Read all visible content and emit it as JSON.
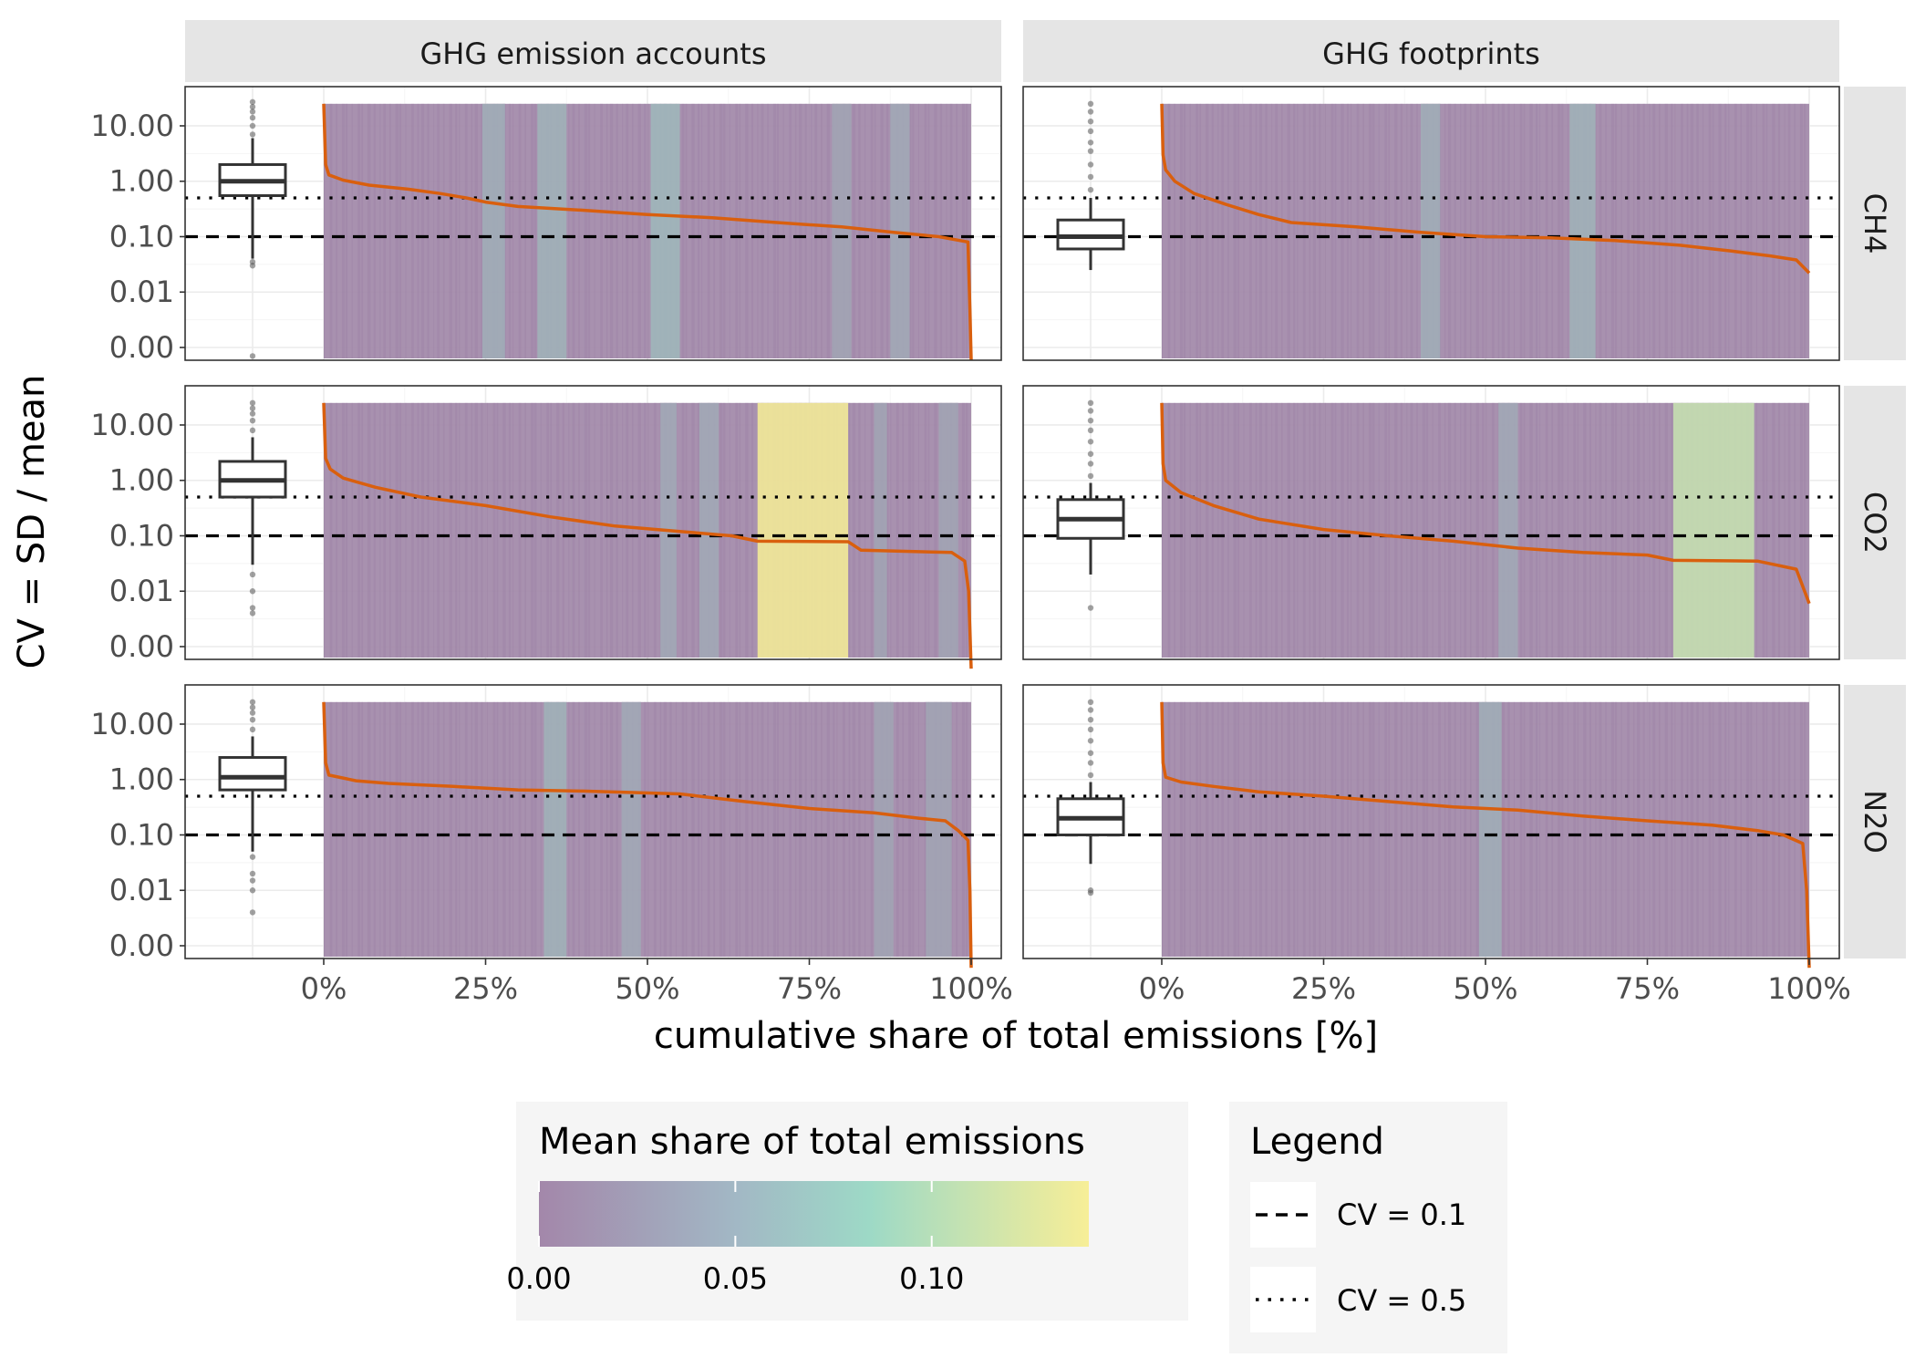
{
  "chart_data": {
    "type": "faceted-line",
    "ylabel": "CV = SD / mean",
    "xlabel": "cumulative share of total emissions [%]",
    "x_ticks": [
      "0%",
      "25%",
      "50%",
      "75%",
      "100%"
    ],
    "x_range": [
      0,
      100
    ],
    "y_scale": "log10",
    "y_range": [
      0.001,
      30
    ],
    "y_ticks": [
      {
        "value": 10,
        "label": "10.00"
      },
      {
        "value": 1,
        "label": "1.00"
      },
      {
        "value": 0.1,
        "label": "0.10"
      },
      {
        "value": 0.01,
        "label": "0.01"
      },
      {
        "value": 0.001,
        "label": "0.00"
      }
    ],
    "columns": [
      "GHG emission accounts",
      "GHG footprints"
    ],
    "rows": [
      "CH4",
      "CO2",
      "N2O"
    ],
    "reference_lines": [
      {
        "label": "CV = 0.1",
        "value": 0.1,
        "style": "dashed"
      },
      {
        "label": "CV = 0.5",
        "value": 0.5,
        "style": "dotted"
      }
    ],
    "colors": {
      "curve": "#d95f0e",
      "fill_low": "#a387aa",
      "fill_mid": "#9dd9c6",
      "fill_high": "#f7ee97"
    },
    "fill_legend": {
      "title": "Mean share of total emissions",
      "breaks": [
        {
          "value": 0.0,
          "label": "0.00"
        },
        {
          "value": 0.05,
          "label": "0.05"
        },
        {
          "value": 0.1,
          "label": "0.10"
        }
      ],
      "range": [
        0,
        0.14
      ]
    },
    "line_legend": {
      "title": "Legend"
    },
    "panels": [
      {
        "column": "GHG emission accounts",
        "row": "CH4",
        "boxplot": {
          "min": 0.04,
          "q1": 0.55,
          "median": 1.0,
          "q3": 2.0,
          "max": 6.0,
          "outliers": [
            7,
            10,
            14,
            18,
            22,
            27,
            0.035,
            0.03,
            0.0007
          ]
        },
        "highlights": [
          {
            "x0": 24.5,
            "x1": 28,
            "share": 0.04
          },
          {
            "x0": 33,
            "x1": 37.5,
            "share": 0.045
          },
          {
            "x0": 50.5,
            "x1": 55,
            "share": 0.05
          },
          {
            "x0": 78.5,
            "x1": 81.5,
            "share": 0.03
          },
          {
            "x0": 87.5,
            "x1": 90.5,
            "share": 0.035
          }
        ],
        "curve": [
          [
            0,
            25
          ],
          [
            0.3,
            2
          ],
          [
            0.8,
            1.3
          ],
          [
            3,
            1.05
          ],
          [
            7,
            0.85
          ],
          [
            13,
            0.72
          ],
          [
            18,
            0.6
          ],
          [
            22,
            0.5
          ],
          [
            25,
            0.42
          ],
          [
            30,
            0.35
          ],
          [
            40,
            0.3
          ],
          [
            50,
            0.25
          ],
          [
            60,
            0.22
          ],
          [
            70,
            0.18
          ],
          [
            80,
            0.15
          ],
          [
            88,
            0.12
          ],
          [
            95,
            0.1
          ],
          [
            99,
            0.082
          ],
          [
            99.5,
            0.08
          ],
          [
            99.8,
            0.005
          ],
          [
            100,
            0.0006
          ]
        ]
      },
      {
        "column": "GHG footprints",
        "row": "CH4",
        "boxplot": {
          "min": 0.025,
          "q1": 0.06,
          "median": 0.1,
          "q3": 0.2,
          "max": 0.5,
          "outliers": [
            0.7,
            1.2,
            2.0,
            3.5,
            5,
            8,
            12,
            18,
            25
          ]
        },
        "highlights": [
          {
            "x0": 40,
            "x1": 43,
            "share": 0.04
          },
          {
            "x0": 63,
            "x1": 67,
            "share": 0.045
          }
        ],
        "curve": [
          [
            0,
            25
          ],
          [
            0.2,
            3
          ],
          [
            0.6,
            1.6
          ],
          [
            2,
            1.0
          ],
          [
            5,
            0.6
          ],
          [
            10,
            0.38
          ],
          [
            15,
            0.25
          ],
          [
            20,
            0.18
          ],
          [
            30,
            0.15
          ],
          [
            40,
            0.12
          ],
          [
            50,
            0.1
          ],
          [
            60,
            0.095
          ],
          [
            70,
            0.085
          ],
          [
            80,
            0.07
          ],
          [
            88,
            0.055
          ],
          [
            94,
            0.045
          ],
          [
            98,
            0.038
          ],
          [
            100,
            0.022
          ]
        ]
      },
      {
        "column": "GHG emission accounts",
        "row": "CO2",
        "boxplot": {
          "min": 0.03,
          "q1": 0.5,
          "median": 1.0,
          "q3": 2.2,
          "max": 6.0,
          "outliers": [
            8,
            12,
            16,
            20,
            25,
            0.02,
            0.01,
            0.005,
            0.004
          ]
        },
        "highlights": [
          {
            "x0": 52,
            "x1": 54.5,
            "share": 0.035
          },
          {
            "x0": 58,
            "x1": 61,
            "share": 0.035
          },
          {
            "x0": 67,
            "x1": 81,
            "share": 0.14
          },
          {
            "x0": 85,
            "x1": 87,
            "share": 0.03
          },
          {
            "x0": 95,
            "x1": 98,
            "share": 0.03
          }
        ],
        "curve": [
          [
            0,
            25
          ],
          [
            0.3,
            2.5
          ],
          [
            1,
            1.6
          ],
          [
            3,
            1.1
          ],
          [
            8,
            0.75
          ],
          [
            15,
            0.5
          ],
          [
            25,
            0.35
          ],
          [
            35,
            0.22
          ],
          [
            45,
            0.15
          ],
          [
            55,
            0.12
          ],
          [
            63,
            0.1
          ],
          [
            67,
            0.08
          ],
          [
            81,
            0.078
          ],
          [
            83,
            0.055
          ],
          [
            97,
            0.05
          ],
          [
            99,
            0.035
          ],
          [
            99.6,
            0.01
          ],
          [
            100,
            0.0004
          ]
        ]
      },
      {
        "column": "GHG footprints",
        "row": "CO2",
        "boxplot": {
          "min": 0.02,
          "q1": 0.09,
          "median": 0.2,
          "q3": 0.45,
          "max": 0.9,
          "outliers": [
            1.2,
            2,
            3,
            5,
            8,
            12,
            18,
            25,
            0.005
          ]
        },
        "highlights": [
          {
            "x0": 52,
            "x1": 55,
            "share": 0.035
          },
          {
            "x0": 79,
            "x1": 91.5,
            "share": 0.11
          }
        ],
        "curve": [
          [
            0,
            25
          ],
          [
            0.2,
            2
          ],
          [
            0.6,
            1.0
          ],
          [
            3,
            0.6
          ],
          [
            8,
            0.35
          ],
          [
            15,
            0.2
          ],
          [
            25,
            0.13
          ],
          [
            35,
            0.1
          ],
          [
            45,
            0.08
          ],
          [
            55,
            0.06
          ],
          [
            65,
            0.05
          ],
          [
            75,
            0.045
          ],
          [
            79,
            0.036
          ],
          [
            92,
            0.035
          ],
          [
            98,
            0.025
          ],
          [
            100,
            0.006
          ]
        ]
      },
      {
        "column": "GHG emission accounts",
        "row": "N2O",
        "boxplot": {
          "min": 0.05,
          "q1": 0.65,
          "median": 1.1,
          "q3": 2.5,
          "max": 6.0,
          "outliers": [
            8,
            12,
            16,
            20,
            25,
            0.04,
            0.02,
            0.015,
            0.01,
            0.004
          ]
        },
        "highlights": [
          {
            "x0": 34,
            "x1": 37.5,
            "share": 0.045
          },
          {
            "x0": 46,
            "x1": 49,
            "share": 0.035
          },
          {
            "x0": 85,
            "x1": 88,
            "share": 0.03
          },
          {
            "x0": 93,
            "x1": 97,
            "share": 0.03
          }
        ],
        "curve": [
          [
            0,
            25
          ],
          [
            0.3,
            2
          ],
          [
            0.8,
            1.2
          ],
          [
            5,
            0.95
          ],
          [
            10,
            0.85
          ],
          [
            20,
            0.75
          ],
          [
            30,
            0.65
          ],
          [
            40,
            0.62
          ],
          [
            55,
            0.55
          ],
          [
            65,
            0.4
          ],
          [
            75,
            0.3
          ],
          [
            85,
            0.25
          ],
          [
            92,
            0.2
          ],
          [
            96,
            0.18
          ],
          [
            98,
            0.12
          ],
          [
            99.5,
            0.08
          ],
          [
            99.8,
            0.01
          ],
          [
            100,
            0.0004
          ]
        ]
      },
      {
        "column": "GHG footprints",
        "row": "N2O",
        "boxplot": {
          "min": 0.03,
          "q1": 0.1,
          "median": 0.2,
          "q3": 0.45,
          "max": 0.9,
          "outliers": [
            1.2,
            2,
            3,
            5,
            8,
            12,
            18,
            25,
            0.01,
            0.009
          ]
        },
        "highlights": [
          {
            "x0": 49,
            "x1": 52.5,
            "share": 0.04
          }
        ],
        "curve": [
          [
            0,
            25
          ],
          [
            0.2,
            2
          ],
          [
            0.6,
            1.1
          ],
          [
            3,
            0.9
          ],
          [
            8,
            0.75
          ],
          [
            15,
            0.6
          ],
          [
            25,
            0.5
          ],
          [
            35,
            0.4
          ],
          [
            45,
            0.32
          ],
          [
            55,
            0.28
          ],
          [
            65,
            0.22
          ],
          [
            75,
            0.18
          ],
          [
            85,
            0.15
          ],
          [
            92,
            0.12
          ],
          [
            96,
            0.1
          ],
          [
            99,
            0.07
          ],
          [
            99.6,
            0.01
          ],
          [
            100,
            0.0004
          ]
        ]
      }
    ]
  }
}
